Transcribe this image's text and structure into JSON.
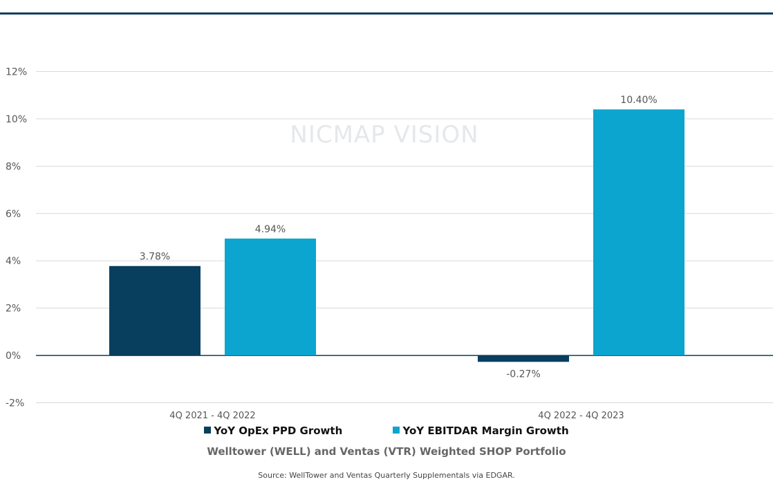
{
  "chart_data": {
    "type": "bar",
    "categories": [
      "4Q 2021 - 4Q 2022",
      "4Q 2022 - 4Q 2023"
    ],
    "series": [
      {
        "name": "YoY OpEx PPD Growth",
        "values": [
          3.78,
          -0.27
        ],
        "labels": [
          "3.78%",
          "-0.27%"
        ],
        "color": "#083e5e"
      },
      {
        "name": "YoY EBITDAR Margin Growth",
        "values": [
          4.94,
          10.4
        ],
        "labels": [
          "4.94%",
          "10.40%"
        ],
        "color": "#0ba5cf"
      }
    ],
    "ylim": [
      -2,
      12
    ],
    "yticks": [
      12,
      10,
      8,
      6,
      4,
      2,
      0,
      -2
    ],
    "ytick_labels": [
      "12%",
      "10%",
      "8%",
      "6%",
      "4%",
      "2%",
      "0%",
      "-2%"
    ],
    "grid": true,
    "legend_position": "bottom",
    "subtitle": "Welltower (WELL) and Ventas (VTR) Weighted SHOP Portfolio",
    "watermark": "NICMAP VISION"
  },
  "source": "Source: WellTower and Ventas Quarterly Supplementals via EDGAR."
}
